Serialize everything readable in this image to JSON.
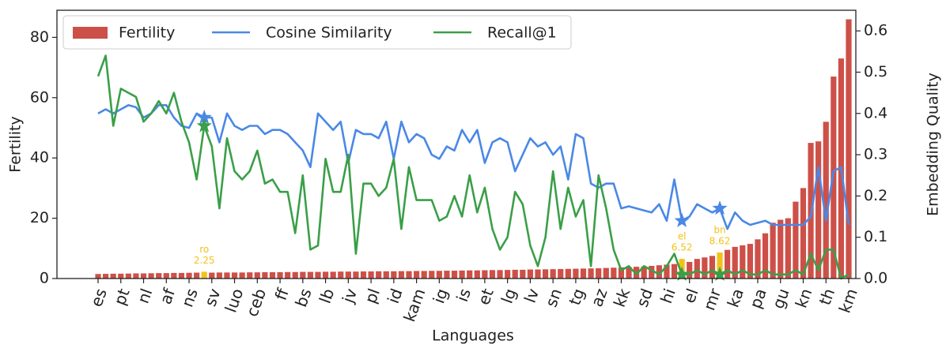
{
  "chart_data": {
    "type": "bar_line",
    "xlabel": "Languages",
    "ylabel": "Fertility",
    "y2label": "Embedding Quality",
    "categories": [
      "es",
      null,
      null,
      "pt",
      null,
      null,
      "nl",
      null,
      null,
      "af",
      null,
      null,
      "ns",
      null,
      null,
      "sv",
      null,
      null,
      "luo",
      null,
      null,
      "ceb",
      null,
      null,
      "ff",
      null,
      null,
      "bs",
      null,
      null,
      "lb",
      null,
      null,
      "jv",
      null,
      null,
      "pl",
      null,
      null,
      "id",
      null,
      null,
      "kam",
      null,
      null,
      "ig",
      null,
      null,
      "is",
      null,
      null,
      "et",
      null,
      null,
      "lg",
      null,
      null,
      "lv",
      null,
      null,
      "sn",
      null,
      null,
      "tg",
      null,
      null,
      "az",
      null,
      null,
      "kk",
      null,
      null,
      "sd",
      null,
      null,
      "hi",
      null,
      null,
      "el",
      null,
      null,
      "mr",
      null,
      null,
      "ka",
      null,
      null,
      "pa",
      null,
      null,
      "gu",
      null,
      null,
      "kn",
      null,
      null,
      "th",
      null,
      null,
      "km"
    ],
    "series": [
      {
        "name": "Fertility",
        "kind": "bar",
        "color": "#cd5048",
        "values": [
          1.5,
          1.55,
          1.6,
          1.6,
          1.65,
          1.7,
          1.7,
          1.75,
          1.8,
          1.8,
          1.85,
          1.85,
          1.9,
          1.95,
          2.25,
          1.95,
          2.0,
          2.0,
          2.0,
          2.0,
          2.05,
          2.05,
          2.1,
          2.1,
          2.1,
          2.15,
          2.15,
          2.2,
          2.2,
          2.2,
          2.25,
          2.25,
          2.3,
          2.3,
          2.3,
          2.35,
          2.35,
          2.4,
          2.4,
          2.4,
          2.45,
          2.45,
          2.5,
          2.5,
          2.55,
          2.55,
          2.6,
          2.6,
          2.65,
          2.7,
          2.7,
          2.75,
          2.8,
          2.8,
          2.85,
          2.9,
          2.9,
          3.0,
          3.0,
          3.05,
          3.1,
          3.15,
          3.2,
          3.25,
          3.3,
          3.35,
          3.4,
          3.5,
          3.6,
          3.7,
          3.8,
          3.9,
          4.0,
          4.2,
          4.4,
          4.6,
          4.8,
          6.52,
          5.5,
          6.5,
          7.0,
          7.5,
          8.62,
          9.5,
          10.5,
          11.0,
          11.5,
          13.0,
          15.0,
          18.5,
          19.5,
          20.0,
          25.5,
          30.0,
          45.0,
          45.5,
          52.0,
          67.0,
          73.0,
          86.0
        ]
      },
      {
        "name": "Cosine Similarity",
        "kind": "line",
        "axis": "y2",
        "color": "#4a88e6",
        "values": [
          0.4,
          0.41,
          0.4,
          0.41,
          0.42,
          0.415,
          0.39,
          0.4,
          0.42,
          0.42,
          0.39,
          0.37,
          0.365,
          0.4,
          0.39,
          0.39,
          0.33,
          0.4,
          0.37,
          0.36,
          0.37,
          0.37,
          0.35,
          0.36,
          0.36,
          0.35,
          0.33,
          0.31,
          0.27,
          0.4,
          0.38,
          0.36,
          0.38,
          0.28,
          0.36,
          0.35,
          0.35,
          0.34,
          0.38,
          0.29,
          0.38,
          0.33,
          0.35,
          0.34,
          0.3,
          0.29,
          0.32,
          0.31,
          0.36,
          0.33,
          0.36,
          0.28,
          0.33,
          0.34,
          0.33,
          0.26,
          0.3,
          0.34,
          0.32,
          0.33,
          0.3,
          0.32,
          0.24,
          0.35,
          0.34,
          0.23,
          0.22,
          0.23,
          0.23,
          0.17,
          0.175,
          0.17,
          0.165,
          0.16,
          0.18,
          0.14,
          0.24,
          0.14,
          0.15,
          0.18,
          0.17,
          0.16,
          0.17,
          0.12,
          0.16,
          0.14,
          0.13,
          0.135,
          0.14,
          0.13,
          0.13,
          0.13,
          0.13,
          0.13,
          0.15,
          0.27,
          0.14,
          0.26,
          0.27,
          0.13
        ]
      },
      {
        "name": "Recall@1",
        "kind": "line",
        "axis": "y2",
        "color": "#3a9f48",
        "values": [
          0.49,
          0.54,
          0.37,
          0.46,
          0.45,
          0.44,
          0.38,
          0.4,
          0.43,
          0.4,
          0.45,
          0.38,
          0.33,
          0.24,
          0.37,
          0.32,
          0.17,
          0.34,
          0.26,
          0.24,
          0.26,
          0.31,
          0.23,
          0.24,
          0.21,
          0.21,
          0.11,
          0.25,
          0.07,
          0.08,
          0.29,
          0.21,
          0.21,
          0.3,
          0.06,
          0.23,
          0.23,
          0.2,
          0.22,
          0.29,
          0.12,
          0.27,
          0.19,
          0.19,
          0.19,
          0.14,
          0.15,
          0.2,
          0.15,
          0.25,
          0.16,
          0.22,
          0.12,
          0.07,
          0.1,
          0.21,
          0.18,
          0.08,
          0.03,
          0.1,
          0.26,
          0.12,
          0.22,
          0.15,
          0.19,
          0.03,
          0.25,
          0.17,
          0.07,
          0.02,
          0.03,
          0.01,
          0.03,
          0.02,
          0.01,
          0.03,
          0.06,
          0.01,
          0.01,
          0.02,
          0.01,
          0.02,
          0.01,
          0.02,
          0.01,
          0.02,
          0.01,
          0.01,
          0.02,
          0.01,
          0.01,
          0.01,
          0.02,
          0.01,
          0.06,
          0.02,
          0.07,
          0.07,
          0.0,
          0.01
        ]
      }
    ],
    "highlights": [
      {
        "index": 14,
        "name": "ro"
      },
      {
        "index": 77,
        "name": "el"
      },
      {
        "index": 82,
        "name": "bn"
      }
    ],
    "highlight_color": "#f2c21b",
    "ylim": [
      0,
      89
    ],
    "yticks": [
      0,
      20,
      40,
      60,
      80
    ],
    "y2lim": [
      0,
      0.65
    ],
    "y2ticks": [
      {
        "value": 0,
        "label": "0.0"
      },
      0.1,
      0.2,
      0.3,
      0.4,
      0.5,
      0.6
    ],
    "legend": "upper left",
    "grid": false
  }
}
